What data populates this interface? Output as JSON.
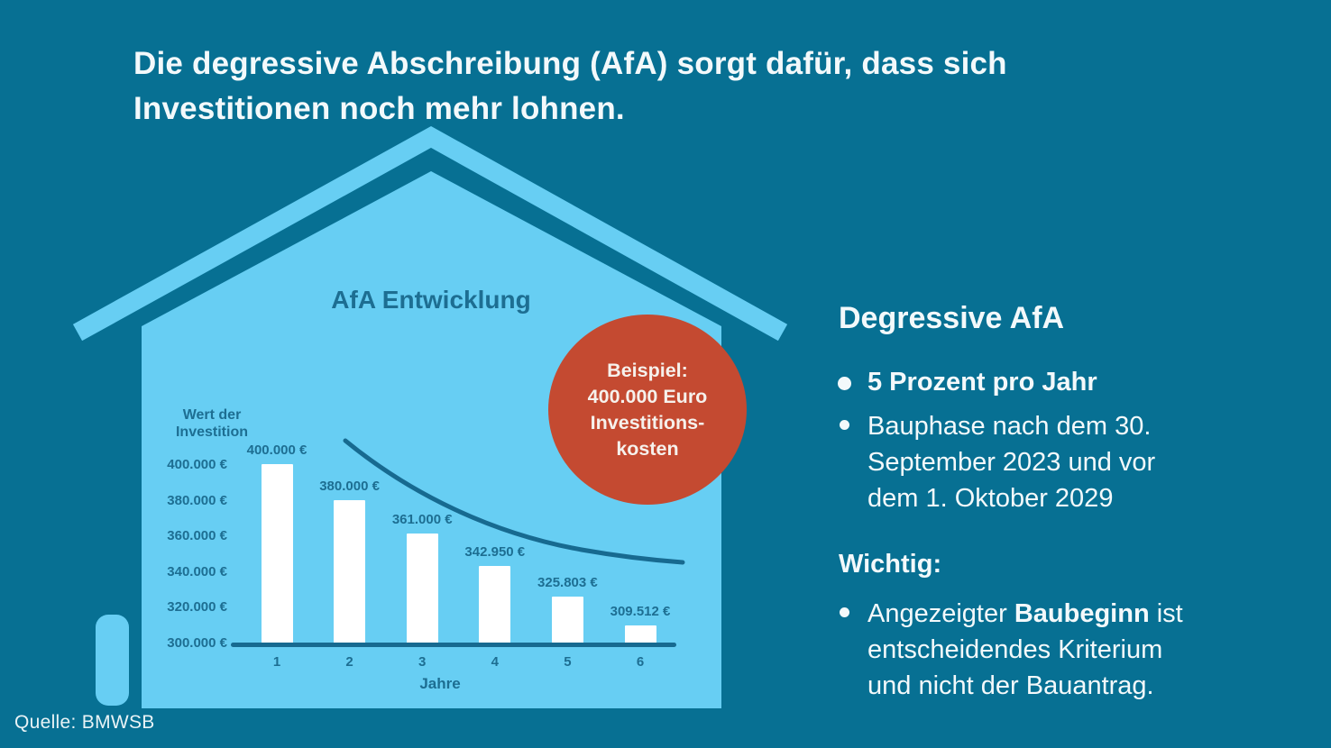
{
  "headline": "Die degressive Abschreibung (AfA) sorgt dafür, dass sich\nInvestitionen noch mehr lohnen.",
  "source": "Quelle: BMWSB",
  "badge": {
    "text": "Beispiel:\n400.000 Euro\nInvestitions-\nkosten",
    "color": "#c44a31"
  },
  "chart_data": {
    "type": "bar",
    "title": "AfA Entwicklung",
    "ylabel": "Wert der\nInvestition",
    "xlabel": "Jahre",
    "categories": [
      "1",
      "2",
      "3",
      "4",
      "5",
      "6"
    ],
    "values": [
      400000,
      380000,
      361000,
      342950,
      325803,
      309512
    ],
    "bar_labels": [
      "400.000 €",
      "380.000 €",
      "361.000 €",
      "342.950 €",
      "325.803 €",
      "309.512 €"
    ],
    "ytick_values": [
      400000,
      380000,
      360000,
      340000,
      320000,
      300000
    ],
    "ytick_labels": [
      "400.000 €",
      "380.000 €",
      "360.000 €",
      "340.000 €",
      "320.000 €",
      "300.000 €"
    ],
    "ylim": [
      300000,
      400000
    ],
    "grid": false,
    "legend": null,
    "overlay": "smooth decreasing depreciation curve above the bars",
    "bar_color": "#ffffff",
    "axis_color": "#176a90"
  },
  "panel": {
    "heading": "Degressive AfA",
    "bullet1": "5 Prozent pro Jahr",
    "bullet2": "Bauphase nach dem 30.\nSeptember 2023 und vor\ndem 1. Oktober 2029",
    "wichtig_heading": "Wichtig:",
    "bullet3_prefix": "Angezeigter ",
    "bullet3_bold": "Baubeginn",
    "bullet3_suffix": " ist\nentscheidendes Kriterium\nund nicht der Bauantrag."
  },
  "colors": {
    "background": "#077093",
    "house": "#67cef3",
    "chart_ink": "#1d6e92",
    "badge_red": "#c44a31",
    "text_white": "#f3f9fb"
  }
}
